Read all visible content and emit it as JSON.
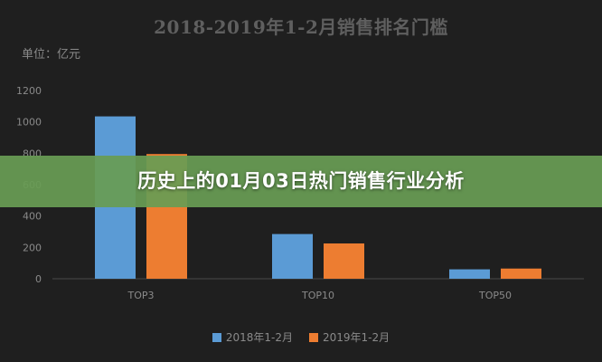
{
  "title": "2018-2019年1-2月销售排名门槛",
  "unit_label": "单位：亿元",
  "banner": {
    "text": "历史上的01月03日热门销售行业分析"
  },
  "colors": {
    "series_1": "#5b9bd5",
    "series_2": "#ed7d31",
    "axis_text": "#8a8a8a",
    "grid": "#3a3a3a"
  },
  "chart_data": {
    "type": "bar",
    "categories": [
      "TOP3",
      "TOP10",
      "TOP50"
    ],
    "series": [
      {
        "name": "2018年1-2月",
        "values": [
          1035,
          285,
          60
        ]
      },
      {
        "name": "2019年1-2月",
        "values": [
          795,
          225,
          65
        ]
      }
    ],
    "ylim": [
      0,
      1200
    ],
    "yticks": [
      0,
      200,
      400,
      600,
      800,
      1000,
      1200
    ],
    "grid": false,
    "legend_position": "bottom"
  }
}
